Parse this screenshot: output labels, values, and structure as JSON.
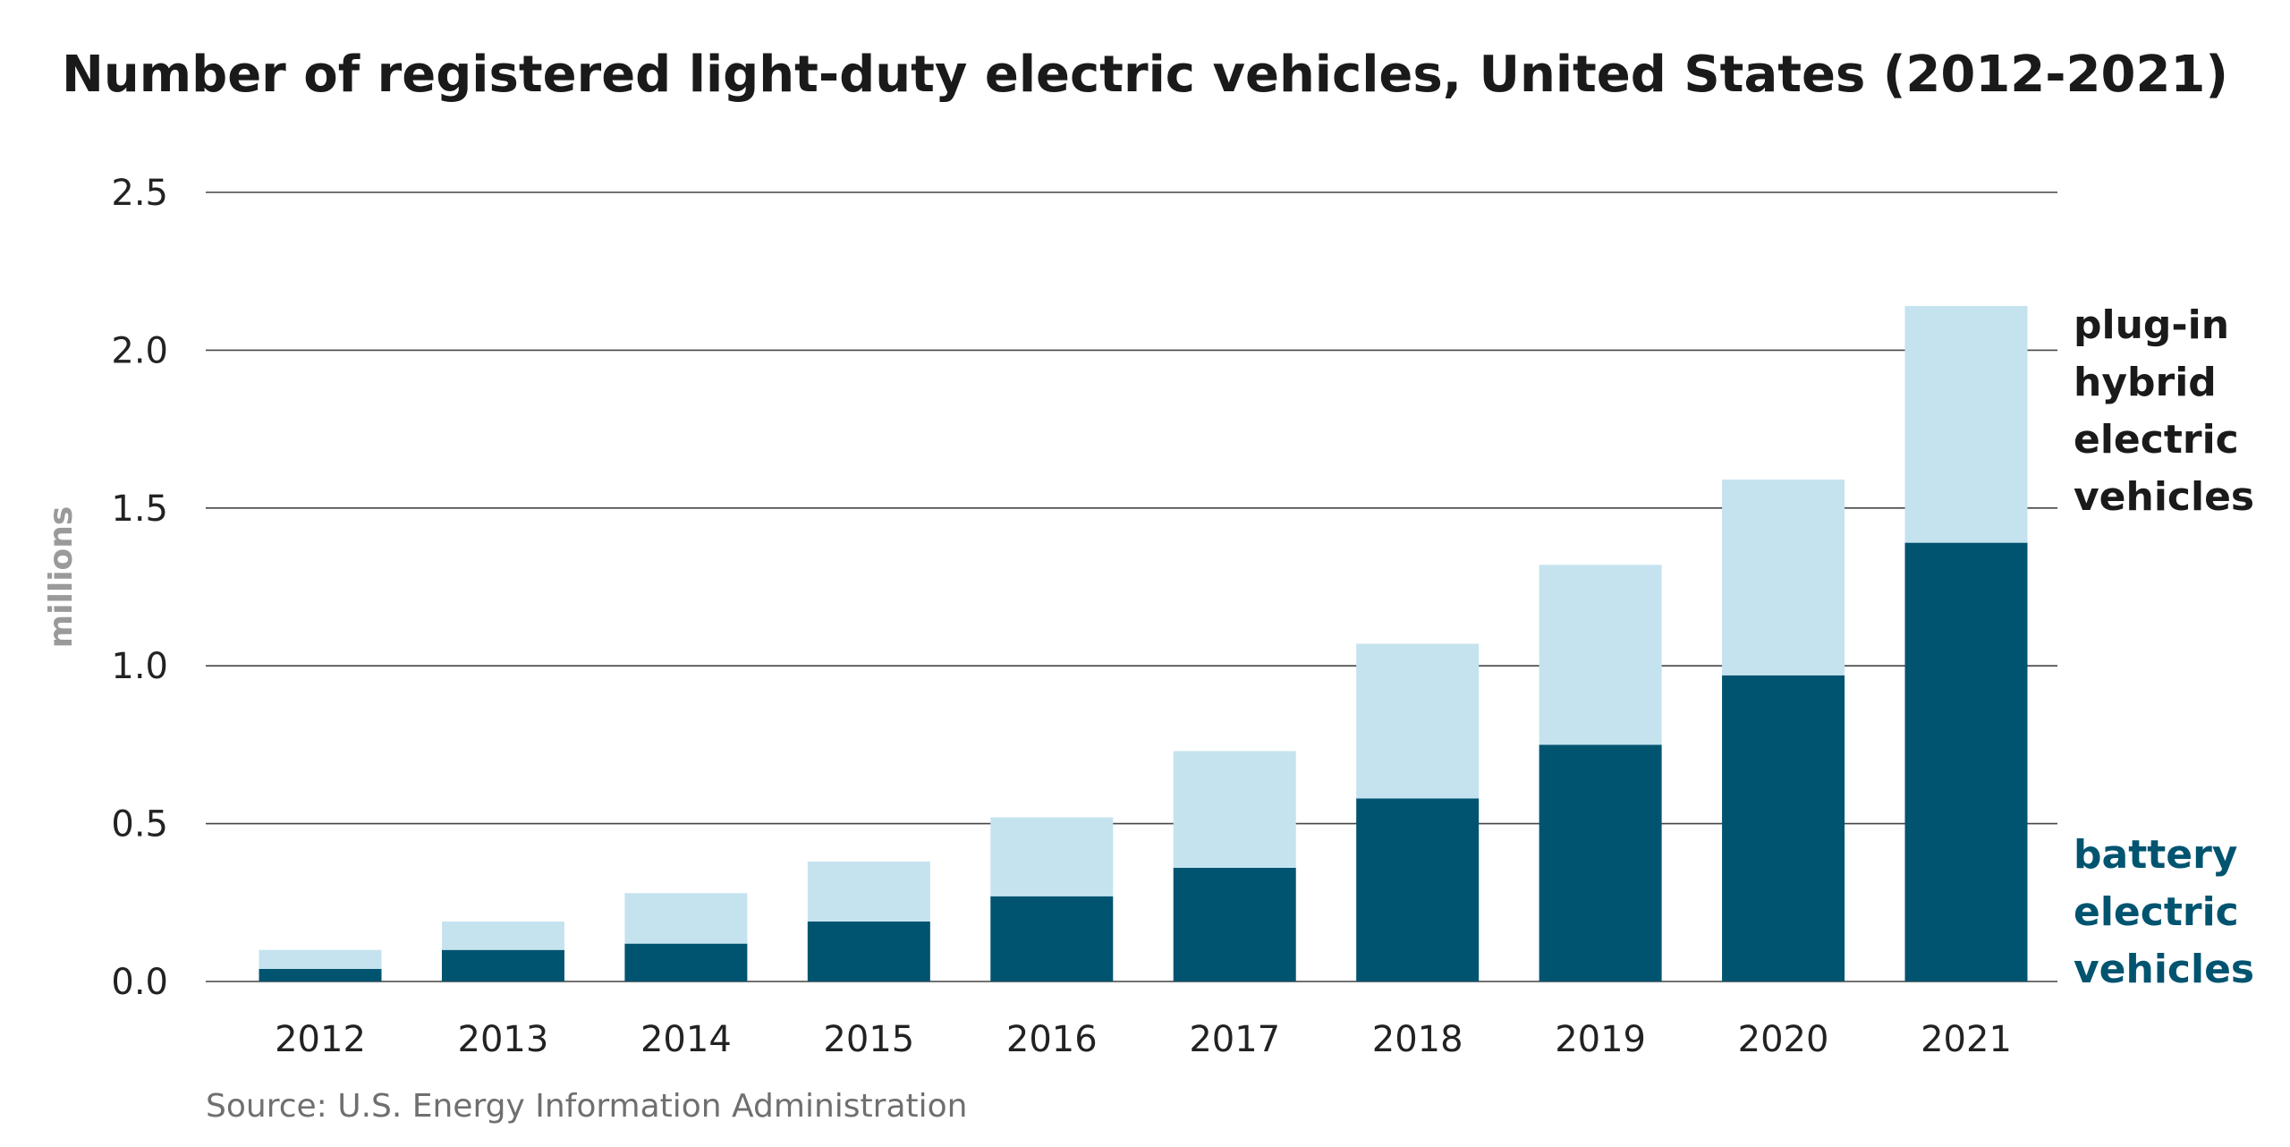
{
  "chart_data": {
    "type": "bar",
    "stacked": true,
    "title": "Number of registered light-duty electric vehicles, United States (2012-2021)",
    "ylabel": "millions",
    "xlabel": "",
    "ylim": [
      0,
      2.5
    ],
    "yticks": [
      "0.0",
      "0.5",
      "1.0",
      "1.5",
      "2.0",
      "2.5"
    ],
    "categories": [
      "2012",
      "2013",
      "2014",
      "2015",
      "2016",
      "2017",
      "2018",
      "2019",
      "2020",
      "2021"
    ],
    "grid": true,
    "legend_placement": "right, labels beside final bar",
    "series": [
      {
        "name": "battery electric vehicles",
        "name_lines": [
          "battery",
          "electric",
          "vehicles"
        ],
        "color": "#005470",
        "values": [
          0.04,
          0.1,
          0.12,
          0.19,
          0.27,
          0.36,
          0.58,
          0.75,
          0.97,
          1.39
        ]
      },
      {
        "name": "plug-in hybrid electric vehicles",
        "name_lines": [
          "plug-in",
          "hybrid",
          "electric",
          "vehicles"
        ],
        "color": "#c5e3ef",
        "values": [
          0.06,
          0.09,
          0.16,
          0.19,
          0.25,
          0.37,
          0.49,
          0.57,
          0.62,
          0.75
        ]
      }
    ],
    "source": "Source: U.S. Energy Information Administration"
  },
  "colors": {
    "title_text": "#1a1a1a",
    "legend_plugin_text": "#1a1a1a",
    "legend_battery_text": "#005470",
    "gridline": "#444444",
    "axis_label": "#9a9a9a"
  }
}
